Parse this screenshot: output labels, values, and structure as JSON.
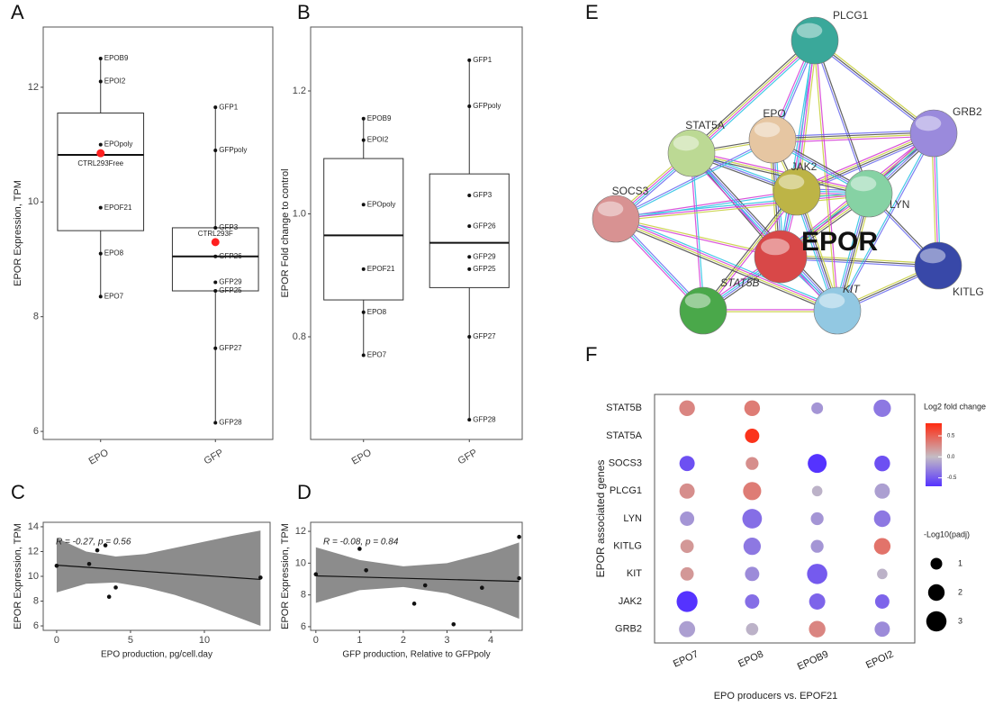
{
  "chart_data": [
    {
      "panel": "A",
      "type": "box",
      "y_label": "EPOR Expression, TPM",
      "ylim": [
        5.86,
        13.05
      ],
      "yticks": [
        6,
        8,
        10,
        12
      ],
      "groups": [
        {
          "name": "EPO",
          "box": {
            "whisker_low": 8.35,
            "q1": 9.5,
            "median": 10.82,
            "q3": 11.55,
            "whisker_high": 12.5
          },
          "points": [
            {
              "label": "EPOB9",
              "value": 12.5
            },
            {
              "label": "EPOI2",
              "value": 12.1
            },
            {
              "label": "EPOpoly",
              "value": 11.0
            },
            {
              "label": "CTRL293Free",
              "value": 10.85,
              "color": "#ff2020"
            },
            {
              "label": "EPOF21",
              "value": 9.9
            },
            {
              "label": "EPO8",
              "value": 9.1
            },
            {
              "label": "EPO7",
              "value": 8.35
            }
          ]
        },
        {
          "name": "GFP",
          "box": {
            "whisker_low": 6.15,
            "q1": 8.45,
            "median": 9.05,
            "q3": 9.55,
            "whisker_high": 11.65
          },
          "points": [
            {
              "label": "GFP1",
              "value": 11.65
            },
            {
              "label": "GFPpoly",
              "value": 10.9
            },
            {
              "label": "GFP3",
              "value": 9.55
            },
            {
              "label": "CTRL293F",
              "value": 9.3,
              "color": "#ff2020"
            },
            {
              "label": "GFP26",
              "value": 9.05
            },
            {
              "label": "GFP29",
              "value": 8.6
            },
            {
              "label": "GFP25",
              "value": 8.45
            },
            {
              "label": "GFP27",
              "value": 7.45
            },
            {
              "label": "GFP28",
              "value": 6.15
            }
          ]
        }
      ]
    },
    {
      "panel": "B",
      "type": "box",
      "y_label": "EPOR Fold change to control",
      "ylim": [
        0.633,
        1.304
      ],
      "yticks": [
        0.8,
        {
          "value": 1,
          "label": "1.0"
        },
        1.2
      ],
      "groups": [
        {
          "name": "EPO",
          "box": {
            "whisker_low": 0.77,
            "q1": 0.86,
            "median": 0.965,
            "q3": 1.09,
            "whisker_high": 1.155
          },
          "points": [
            {
              "label": "EPOB9",
              "value": 1.155
            },
            {
              "label": "EPOI2",
              "value": 1.12
            },
            {
              "label": "EPOpoly",
              "value": 1.015
            },
            {
              "label": "EPOF21",
              "value": 0.91
            },
            {
              "label": "EPO8",
              "value": 0.84
            },
            {
              "label": "EPO7",
              "value": 0.77
            }
          ]
        },
        {
          "name": "GFP",
          "box": {
            "whisker_low": 0.665,
            "q1": 0.88,
            "median": 0.953,
            "q3": 1.065,
            "whisker_high": 1.25
          },
          "points": [
            {
              "label": "GFP1",
              "value": 1.25
            },
            {
              "label": "GFPpoly",
              "value": 1.175
            },
            {
              "label": "GFP3",
              "value": 1.03
            },
            {
              "label": "GFP26",
              "value": 0.98
            },
            {
              "label": "GFP29",
              "value": 0.93
            },
            {
              "label": "GFP25",
              "value": 0.91
            },
            {
              "label": "GFP27",
              "value": 0.8
            },
            {
              "label": "GFP28",
              "value": 0.665
            }
          ]
        }
      ]
    },
    {
      "panel": "C",
      "type": "scatter",
      "x_label": "EPO production, pg/cell.day",
      "y_label": "EPOR Expression, TPM",
      "annotation": "R = -0.27, p = 0.56",
      "xlim": [
        -0.91,
        14.45
      ],
      "xticks": [
        0,
        5,
        10
      ],
      "ylim": [
        5.64,
        14.36
      ],
      "yticks": [
        6,
        8,
        10,
        12,
        14
      ],
      "x": [
        0,
        2.2,
        2.75,
        3.3,
        3.55,
        4.0,
        13.8
      ],
      "y": [
        10.85,
        11.0,
        12.1,
        12.5,
        8.35,
        9.1,
        9.9
      ],
      "fit": {
        "x": [
          0,
          13.8
        ],
        "y": [
          10.9,
          9.75
        ]
      },
      "ci": {
        "x": [
          0,
          2,
          4,
          6,
          8,
          10,
          12,
          13.8
        ],
        "upper": [
          13.1,
          12.0,
          11.6,
          11.8,
          12.3,
          12.8,
          13.3,
          13.7
        ],
        "lower": [
          8.7,
          9.4,
          9.5,
          9.1,
          8.5,
          7.7,
          6.8,
          6.0
        ]
      }
    },
    {
      "panel": "D",
      "type": "scatter",
      "x_label": "GFP production, Relative to GFPpoly",
      "y_label": "EPOR Expression, TPM",
      "annotation": "R = -0.08, p = 0.84",
      "xlim": [
        -0.12,
        4.72
      ],
      "xticks": [
        0,
        1,
        2,
        3,
        4
      ],
      "ylim": [
        5.77,
        12.57
      ],
      "yticks": [
        6,
        8,
        10,
        12
      ],
      "x": [
        0,
        1.0,
        1.15,
        2.25,
        2.5,
        3.15,
        3.8,
        4.65,
        4.65
      ],
      "y": [
        9.3,
        10.9,
        9.55,
        7.45,
        8.6,
        6.15,
        8.45,
        11.65,
        9.05
      ],
      "fit": {
        "x": [
          0,
          4.65
        ],
        "y": [
          9.2,
          8.85
        ]
      },
      "ci": {
        "x": [
          0,
          1,
          2,
          3,
          4,
          4.65
        ],
        "upper": [
          11.0,
          10.2,
          9.8,
          10.0,
          10.7,
          11.3
        ],
        "lower": [
          7.5,
          8.3,
          8.5,
          8.1,
          7.2,
          6.5
        ]
      }
    },
    {
      "panel": "F",
      "type": "dot",
      "x_label": "EPO producers vs. EPOF21",
      "y_label": "EPOR associated genes",
      "categories": [
        "EPO7",
        "EPO8",
        "EPOB9",
        "EPOI2"
      ],
      "color_title": "Log2 fold change",
      "clim": [
        -0.7,
        0.8
      ],
      "cticks": [
        0.5,
        {
          "value": 0,
          "label": "0.0"
        },
        -0.5
      ],
      "colors": {
        "low": "#5533ff",
        "mid": "#c4bcc4",
        "high": "#ff2a10"
      },
      "size_title": "-Log10(padj)",
      "size_ticks": [
        1,
        2,
        3
      ],
      "rows": [
        {
          "name": "STAT5B",
          "values": [
            0.3,
            0.35,
            -0.2,
            -0.35
          ],
          "sizes": [
            1.8,
            1.8,
            1.0,
            2.2
          ]
        },
        {
          "name": "STAT5A",
          "values": [
            null,
            0.75,
            null,
            null
          ],
          "sizes": [
            null,
            1.5,
            null,
            null
          ]
        },
        {
          "name": "SOCS3",
          "values": [
            -0.55,
            0.25,
            -0.7,
            -0.55
          ],
          "sizes": [
            1.7,
            1.2,
            2.6,
            1.8
          ]
        },
        {
          "name": "PLCG1",
          "values": [
            0.25,
            0.35,
            -0.05,
            -0.15
          ],
          "sizes": [
            1.7,
            2.4,
            0.8,
            1.7
          ]
        },
        {
          "name": "LYN",
          "values": [
            -0.2,
            -0.4,
            -0.2,
            -0.35
          ],
          "sizes": [
            1.5,
            2.8,
            1.2,
            2.0
          ]
        },
        {
          "name": "KITLG",
          "values": [
            0.2,
            -0.35,
            -0.2,
            0.4
          ],
          "sizes": [
            1.3,
            2.2,
            1.2,
            2.0
          ]
        },
        {
          "name": "KIT",
          "values": [
            0.2,
            -0.25,
            -0.5,
            -0.05
          ],
          "sizes": [
            1.3,
            1.5,
            3.0,
            0.8
          ]
        },
        {
          "name": "JAK2",
          "values": [
            -0.75,
            -0.4,
            -0.45,
            -0.45
          ],
          "sizes": [
            3.2,
            1.5,
            1.9,
            1.5
          ]
        },
        {
          "name": "GRB2",
          "values": [
            -0.15,
            -0.05,
            0.3,
            -0.25
          ],
          "sizes": [
            1.9,
            1.1,
            2.0,
            1.7
          ]
        }
      ]
    }
  ],
  "network": {
    "panel": "E",
    "nodes": [
      "PLCG1",
      "GRB2",
      "EPO",
      "STAT5A",
      "JAK2",
      "LYN",
      "SOCS3",
      "EPOR",
      "KITLG",
      "STAT5B",
      "KIT"
    ]
  }
}
